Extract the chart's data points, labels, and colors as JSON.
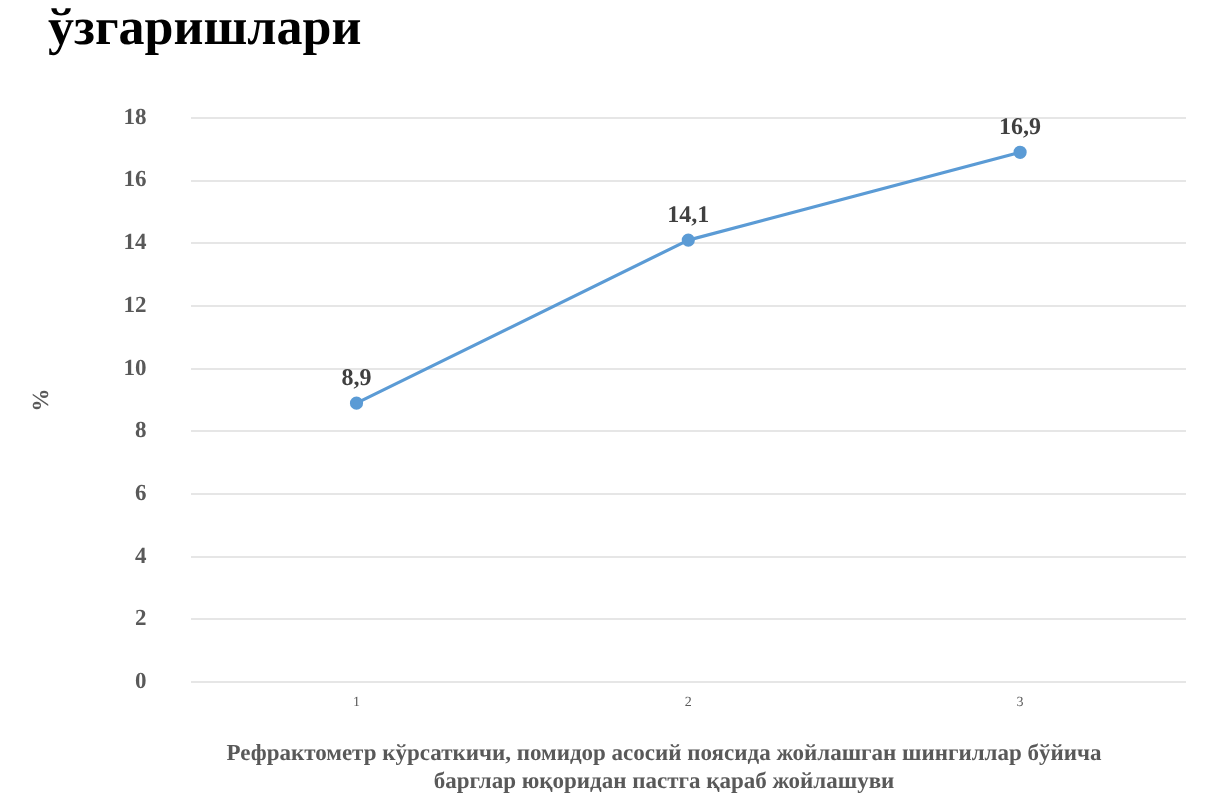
{
  "chart_data": {
    "type": "line",
    "title": "ўзгаришлари",
    "xlabel": "Рефрактометр кўрсаткичи, помидор асосий поясида жойлашган шингиллар бўйича барглар юқоридан пастга қараб жойлашуви",
    "ylabel": "%",
    "categories": [
      "1",
      "2",
      "3"
    ],
    "series": [
      {
        "color": "#5b9bd5",
        "values": [
          8.9,
          14.1,
          16.9
        ],
        "value_labels": [
          "8,9",
          "14,1",
          "16,9"
        ]
      }
    ],
    "ylim": [
      0,
      18
    ],
    "yticks": [
      0,
      2,
      4,
      6,
      8,
      10,
      12,
      14,
      16,
      18
    ],
    "grid": "y",
    "legend": false,
    "marker": "circle",
    "line_style": "solid"
  }
}
